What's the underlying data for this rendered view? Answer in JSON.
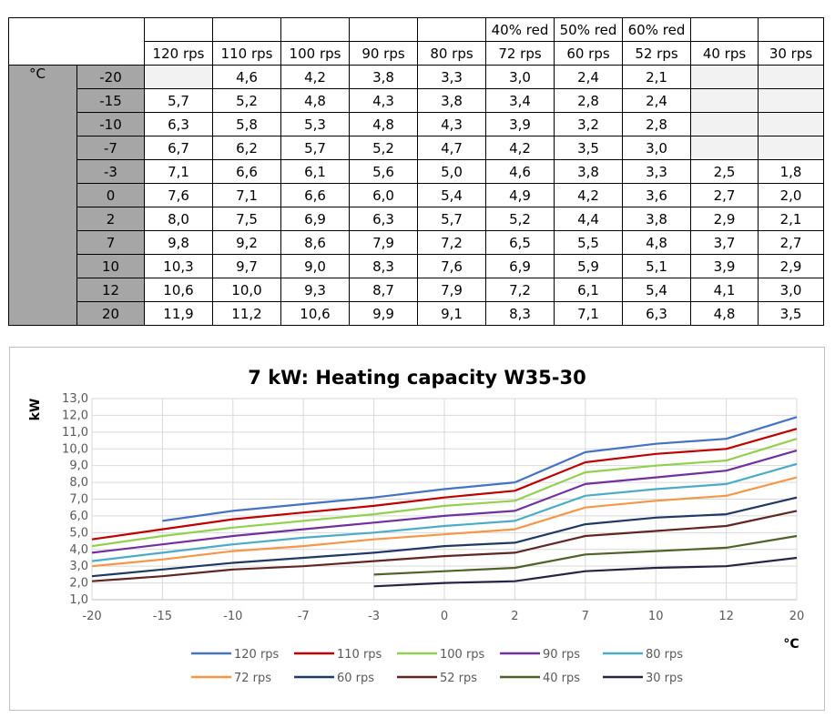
{
  "table": {
    "reductions": [
      "",
      "",
      "",
      "",
      "",
      "40% red",
      "50% red",
      "60% red",
      "",
      ""
    ],
    "speeds": [
      "120 rps",
      "110 rps",
      "100 rps",
      "90 rps",
      "80 rps",
      "72 rps",
      "60 rps",
      "52 rps",
      "40 rps",
      "30 rps"
    ],
    "unit": "°C",
    "rows": [
      {
        "t": "-20",
        "v": [
          "",
          "4,6",
          "4,2",
          "3,8",
          "3,3",
          "3,0",
          "2,4",
          "2,1",
          "",
          ""
        ]
      },
      {
        "t": "-15",
        "v": [
          "5,7",
          "5,2",
          "4,8",
          "4,3",
          "3,8",
          "3,4",
          "2,8",
          "2,4",
          "",
          ""
        ]
      },
      {
        "t": "-10",
        "v": [
          "6,3",
          "5,8",
          "5,3",
          "4,8",
          "4,3",
          "3,9",
          "3,2",
          "2,8",
          "",
          ""
        ]
      },
      {
        "t": "-7",
        "v": [
          "6,7",
          "6,2",
          "5,7",
          "5,2",
          "4,7",
          "4,2",
          "3,5",
          "3,0",
          "",
          ""
        ]
      },
      {
        "t": "-3",
        "v": [
          "7,1",
          "6,6",
          "6,1",
          "5,6",
          "5,0",
          "4,6",
          "3,8",
          "3,3",
          "2,5",
          "1,8"
        ]
      },
      {
        "t": "0",
        "v": [
          "7,6",
          "7,1",
          "6,6",
          "6,0",
          "5,4",
          "4,9",
          "4,2",
          "3,6",
          "2,7",
          "2,0"
        ]
      },
      {
        "t": "2",
        "v": [
          "8,0",
          "7,5",
          "6,9",
          "6,3",
          "5,7",
          "5,2",
          "4,4",
          "3,8",
          "2,9",
          "2,1"
        ]
      },
      {
        "t": "7",
        "v": [
          "9,8",
          "9,2",
          "8,6",
          "7,9",
          "7,2",
          "6,5",
          "5,5",
          "4,8",
          "3,7",
          "2,7"
        ]
      },
      {
        "t": "10",
        "v": [
          "10,3",
          "9,7",
          "9,0",
          "8,3",
          "7,6",
          "6,9",
          "5,9",
          "5,1",
          "3,9",
          "2,9"
        ]
      },
      {
        "t": "12",
        "v": [
          "10,6",
          "10,0",
          "9,3",
          "8,7",
          "7,9",
          "7,2",
          "6,1",
          "5,4",
          "4,1",
          "3,0"
        ]
      },
      {
        "t": "20",
        "v": [
          "11,9",
          "11,2",
          "10,6",
          "9,9",
          "9,1",
          "8,3",
          "7,1",
          "6,3",
          "4,8",
          "3,5"
        ]
      }
    ]
  },
  "chart_data": {
    "type": "line",
    "title": "7 kW: Heating capacity W35-30",
    "ylabel": "kW",
    "xlabel": "°C",
    "x": [
      "-20",
      "-15",
      "-10",
      "-7",
      "-3",
      "0",
      "2",
      "7",
      "10",
      "12",
      "20"
    ],
    "ylim": [
      1.0,
      13.0
    ],
    "ystep": 1.0,
    "ytick_labels": [
      "1,0",
      "2,0",
      "3,0",
      "4,0",
      "5,0",
      "6,0",
      "7,0",
      "8,0",
      "9,0",
      "10,0",
      "11,0",
      "12,0",
      "13,0"
    ],
    "grid": true,
    "legend": "bottom",
    "series": [
      {
        "name": "120 rps",
        "color": "#4472c4",
        "values": [
          null,
          5.7,
          6.3,
          6.7,
          7.1,
          7.6,
          8.0,
          9.8,
          10.3,
          10.6,
          11.9
        ]
      },
      {
        "name": "110 rps",
        "color": "#c00000",
        "values": [
          4.6,
          5.2,
          5.8,
          6.2,
          6.6,
          7.1,
          7.5,
          9.2,
          9.7,
          10.0,
          11.2
        ]
      },
      {
        "name": "100 rps",
        "color": "#92d050",
        "values": [
          4.2,
          4.8,
          5.3,
          5.7,
          6.1,
          6.6,
          6.9,
          8.6,
          9.0,
          9.3,
          10.6
        ]
      },
      {
        "name": "90 rps",
        "color": "#7030a0",
        "values": [
          3.8,
          4.3,
          4.8,
          5.2,
          5.6,
          6.0,
          6.3,
          7.9,
          8.3,
          8.7,
          9.9
        ]
      },
      {
        "name": "80 rps",
        "color": "#4bacc6",
        "values": [
          3.3,
          3.8,
          4.3,
          4.7,
          5.0,
          5.4,
          5.7,
          7.2,
          7.6,
          7.9,
          9.1
        ]
      },
      {
        "name": "72 rps",
        "color": "#f79646",
        "values": [
          3.0,
          3.4,
          3.9,
          4.2,
          4.6,
          4.9,
          5.2,
          6.5,
          6.9,
          7.2,
          8.3
        ]
      },
      {
        "name": "60 rps",
        "color": "#1f3864",
        "values": [
          2.4,
          2.8,
          3.2,
          3.5,
          3.8,
          4.2,
          4.4,
          5.5,
          5.9,
          6.1,
          7.1
        ]
      },
      {
        "name": "52 rps",
        "color": "#632523",
        "values": [
          2.1,
          2.4,
          2.8,
          3.0,
          3.3,
          3.6,
          3.8,
          4.8,
          5.1,
          5.4,
          6.3
        ]
      },
      {
        "name": "40 rps",
        "color": "#4f6228",
        "values": [
          null,
          null,
          null,
          null,
          2.5,
          2.7,
          2.9,
          3.7,
          3.9,
          4.1,
          4.8
        ]
      },
      {
        "name": "30 rps",
        "color": "#262443",
        "values": [
          null,
          null,
          null,
          null,
          1.8,
          2.0,
          2.1,
          2.7,
          2.9,
          3.0,
          3.5
        ]
      }
    ]
  }
}
